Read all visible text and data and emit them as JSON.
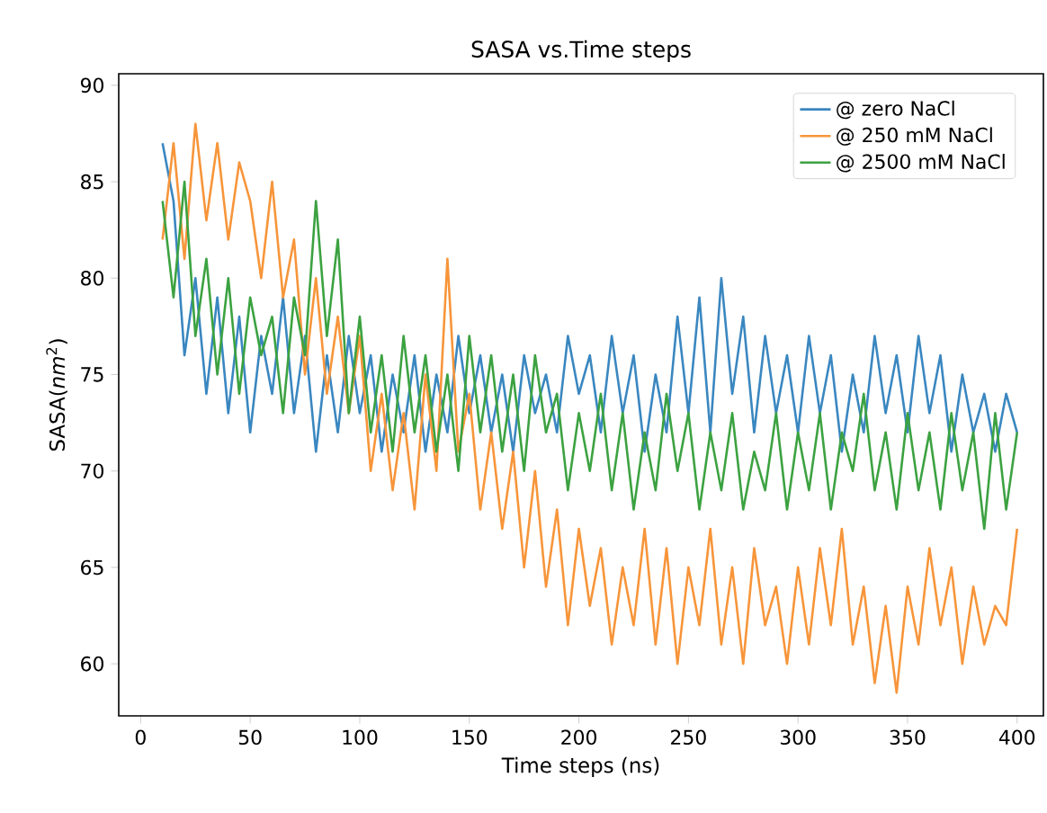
{
  "chart_data": {
    "type": "line",
    "title": "SASA vs.Time steps",
    "xlabel": "Time steps (ns)",
    "ylabel": "SASA(*nm*$^{2}$)",
    "x": [
      10,
      15,
      20,
      25,
      30,
      35,
      40,
      45,
      50,
      55,
      60,
      65,
      70,
      75,
      80,
      85,
      90,
      95,
      100,
      105,
      110,
      115,
      120,
      125,
      130,
      135,
      140,
      145,
      150,
      155,
      160,
      165,
      170,
      175,
      180,
      185,
      190,
      195,
      200,
      205,
      210,
      215,
      220,
      225,
      230,
      235,
      240,
      245,
      250,
      255,
      260,
      265,
      270,
      275,
      280,
      285,
      290,
      295,
      300,
      305,
      310,
      315,
      320,
      325,
      330,
      335,
      340,
      345,
      350,
      355,
      360,
      365,
      370,
      375,
      380,
      385,
      390,
      395,
      400
    ],
    "series": [
      {
        "name": "@ zero NaCl",
        "color": "#3a87c0",
        "values": [
          87,
          84,
          76,
          80,
          74,
          79,
          73,
          78,
          72,
          77,
          74,
          79,
          73,
          77,
          71,
          76,
          72,
          77,
          73,
          76,
          71,
          75,
          72,
          76,
          71,
          75,
          72,
          77,
          73,
          76,
          72,
          75,
          71,
          76,
          73,
          75,
          72,
          77,
          74,
          76,
          72,
          77,
          73,
          76,
          71,
          75,
          72,
          78,
          73,
          79,
          72,
          80,
          74,
          78,
          72,
          77,
          73,
          76,
          72,
          77,
          73,
          76,
          71,
          75,
          72,
          77,
          73,
          76,
          72,
          77,
          73,
          76,
          71,
          75,
          72,
          74,
          71,
          74,
          72
        ]
      },
      {
        "name": "@ 250 mM NaCl",
        "color": "#f7953a",
        "values": [
          82,
          87,
          81,
          88,
          83,
          87,
          82,
          86,
          84,
          80,
          85,
          79,
          82,
          75,
          80,
          74,
          78,
          73,
          77,
          70,
          74,
          69,
          73,
          68,
          75,
          70,
          81,
          71,
          74,
          68,
          72,
          67,
          71,
          65,
          70,
          64,
          68,
          62,
          67,
          63,
          66,
          61,
          65,
          62,
          67,
          61,
          66,
          60,
          65,
          62,
          67,
          61,
          65,
          60,
          66,
          62,
          64,
          60,
          65,
          61,
          66,
          62,
          67,
          61,
          64,
          59,
          63,
          58.5,
          64,
          61,
          66,
          62,
          65,
          60,
          64,
          61,
          63,
          62,
          67
        ]
      },
      {
        "name": "@ 2500 mM NaCl",
        "color": "#3ca241",
        "values": [
          84,
          79,
          85,
          77,
          81,
          75,
          80,
          74,
          79,
          76,
          78,
          73,
          79,
          76,
          84,
          77,
          82,
          73,
          78,
          72,
          76,
          71,
          77,
          72,
          76,
          71,
          75,
          70,
          77,
          72,
          76,
          71,
          75,
          70,
          76,
          72,
          74,
          69,
          73,
          70,
          74,
          69,
          73,
          68,
          72,
          69,
          74,
          70,
          73,
          68,
          72,
          69,
          73,
          68,
          71,
          69,
          73,
          68,
          72,
          69,
          73,
          68,
          72,
          70,
          74,
          69,
          72,
          68,
          73,
          69,
          72,
          68,
          73,
          69,
          72,
          67,
          73,
          68,
          72
        ]
      }
    ],
    "xlim": [
      -10,
      412
    ],
    "ylim": [
      57.3,
      90.6
    ],
    "xticks": [
      0,
      50,
      100,
      150,
      200,
      250,
      300,
      350,
      400
    ],
    "yticks": [
      60,
      65,
      70,
      75,
      80,
      85,
      90
    ],
    "grid": false,
    "legend": "top right",
    "marker": "none",
    "line_style": "solid"
  }
}
